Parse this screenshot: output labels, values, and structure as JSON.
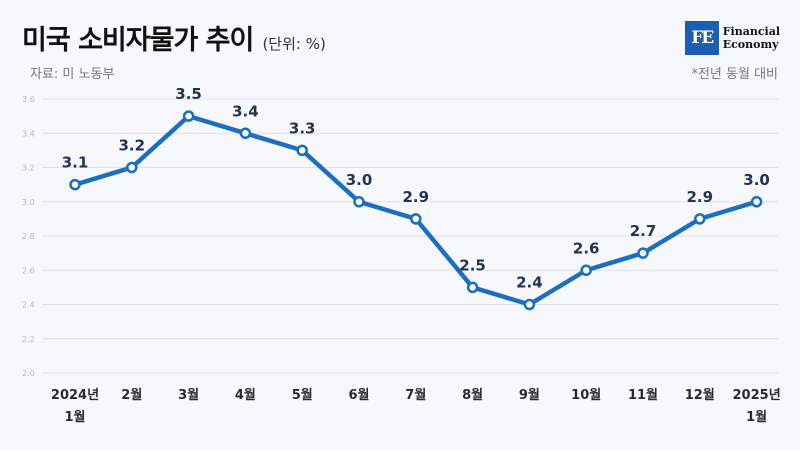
{
  "header": {
    "title": "미국 소비자물가 추이",
    "unit": "(단위: %)",
    "source": "자료: 미 노동부",
    "note": "*전년 동월 대비"
  },
  "logo": {
    "mark": "FE",
    "line1": "Financial",
    "line2": "Economy"
  },
  "colors": {
    "line": "#1a6fc0",
    "grid": "#dde2e8"
  },
  "chart_data": {
    "type": "line",
    "title": "미국 소비자물가 추이",
    "unit": "(단위: %)",
    "categories": [
      [
        "2024년",
        "1월"
      ],
      [
        "2월"
      ],
      [
        "3월"
      ],
      [
        "4월"
      ],
      [
        "5월"
      ],
      [
        "6월"
      ],
      [
        "7월"
      ],
      [
        "8월"
      ],
      [
        "9월"
      ],
      [
        "10월"
      ],
      [
        "11월"
      ],
      [
        "12월"
      ],
      [
        "2025년",
        "1월"
      ]
    ],
    "series": [
      {
        "values": [
          3.1,
          3.2,
          3.5,
          3.4,
          3.3,
          3.0,
          2.9,
          2.5,
          2.4,
          2.6,
          2.7,
          2.9,
          3.0
        ]
      }
    ],
    "data_labels": [
      "3.1",
      "3.2",
      "3.5",
      "3.4",
      "3.3",
      "3.0",
      "2.9",
      "2.5",
      "2.4",
      "2.6",
      "2.7",
      "2.9",
      "3.0"
    ],
    "yticks": [
      "2.0",
      "2.2",
      "2.4",
      "2.6",
      "2.8",
      "3.0",
      "3.2",
      "3.4",
      "3.6"
    ],
    "ylim": [
      2.0,
      3.6
    ],
    "grid": true
  }
}
